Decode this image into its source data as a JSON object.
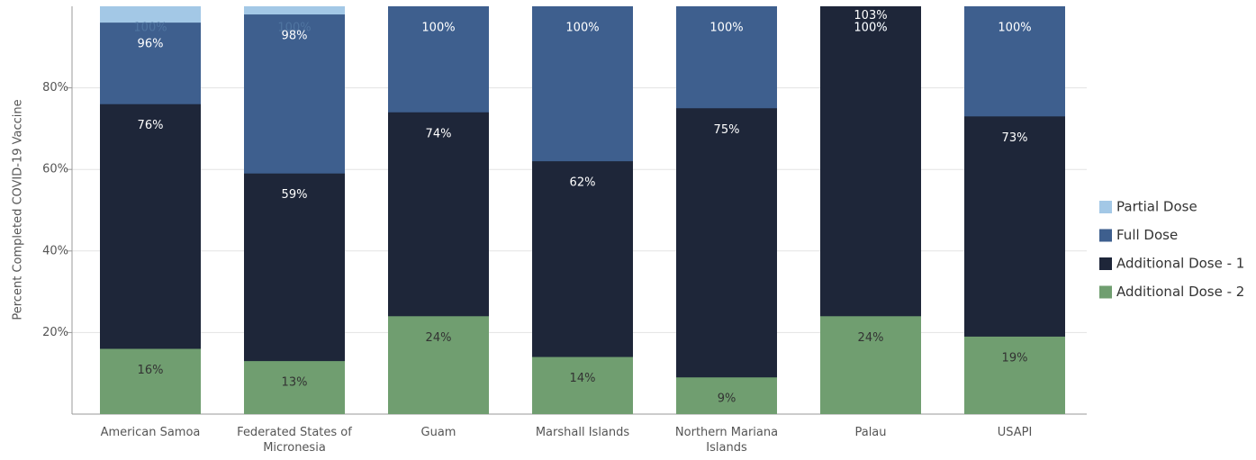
{
  "chart_data": {
    "type": "bar",
    "y_label": "Percent Completed COVID-19 Vaccine",
    "categories": [
      "American Samoa",
      "Federated States of Micronesia",
      "Guam",
      "Marshall Islands",
      "Northern Mariana Islands",
      "Palau",
      "USAPI"
    ],
    "series": [
      {
        "name": "Partial Dose",
        "color": "#a3c8e6",
        "values": [
          100,
          100,
          100,
          100,
          100,
          100,
          100
        ],
        "value_labels": [
          "100%",
          "100%",
          "100%",
          "100%",
          "100%",
          "100%",
          "100%"
        ]
      },
      {
        "name": "Full Dose",
        "color": "#3e5f8e",
        "values": [
          96,
          98,
          100,
          100,
          100,
          100,
          100
        ],
        "value_labels": [
          "96%",
          "98%",
          "100%",
          "100%",
          "100%",
          "100%",
          "100%"
        ]
      },
      {
        "name": "Additional Dose - 1",
        "color": "#1e2639",
        "values": [
          76,
          59,
          74,
          62,
          75,
          103,
          73
        ],
        "value_labels": [
          "76%",
          "59%",
          "74%",
          "62%",
          "75%",
          "103%",
          "73%"
        ]
      },
      {
        "name": "Additional Dose - 2",
        "color": "#709e70",
        "values": [
          16,
          13,
          24,
          14,
          9,
          24,
          19
        ],
        "value_labels": [
          "16%",
          "13%",
          "24%",
          "14%",
          "9%",
          "24%",
          "19%"
        ]
      }
    ],
    "ylim": [
      0,
      100
    ],
    "yticks": [
      {
        "value": 20,
        "label": "20%"
      },
      {
        "value": 40,
        "label": "40%"
      },
      {
        "value": 60,
        "label": "60%"
      },
      {
        "value": 80,
        "label": "80%"
      }
    ],
    "grid": true,
    "legend": "right"
  }
}
